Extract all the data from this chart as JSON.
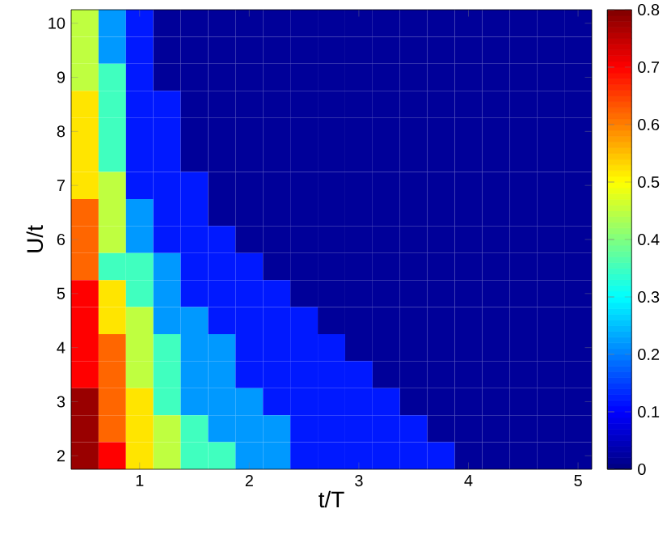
{
  "chart_data": {
    "type": "heatmap",
    "xlabel": "t/T",
    "ylabel": "U/t",
    "clim": [
      0,
      0.8
    ],
    "cticks": [
      0,
      0.1,
      0.2,
      0.3,
      0.4,
      0.5,
      0.6,
      0.7,
      0.8
    ],
    "categories": [
      null,
      null,
      "1",
      null,
      null,
      null,
      "2",
      null,
      null,
      null,
      "3",
      null,
      null,
      null,
      "4",
      null,
      null,
      null,
      "5"
    ],
    "y_categories": [
      "10",
      null,
      "9",
      null,
      "8",
      null,
      "7",
      null,
      "6",
      null,
      "5",
      null,
      "4",
      null,
      "3",
      null,
      "2"
    ],
    "cells": [
      [
        0.45,
        0.22,
        0.12,
        0.02,
        0.02,
        0.02,
        0.02,
        0.02,
        0.02,
        0.02,
        0.02,
        0.02,
        0.02,
        0.02,
        0.02,
        0.02,
        0.02,
        0.02,
        0.02
      ],
      [
        0.45,
        0.22,
        0.12,
        0.02,
        0.02,
        0.02,
        0.02,
        0.02,
        0.02,
        0.02,
        0.02,
        0.02,
        0.02,
        0.02,
        0.02,
        0.02,
        0.02,
        0.02,
        0.02
      ],
      [
        0.45,
        0.35,
        0.12,
        0.02,
        0.02,
        0.02,
        0.02,
        0.02,
        0.02,
        0.02,
        0.02,
        0.02,
        0.02,
        0.02,
        0.02,
        0.02,
        0.02,
        0.02,
        0.02
      ],
      [
        0.52,
        0.35,
        0.12,
        0.12,
        0.02,
        0.02,
        0.02,
        0.02,
        0.02,
        0.02,
        0.02,
        0.02,
        0.02,
        0.02,
        0.02,
        0.02,
        0.02,
        0.02,
        0.02
      ],
      [
        0.52,
        0.35,
        0.12,
        0.12,
        0.02,
        0.02,
        0.02,
        0.02,
        0.02,
        0.02,
        0.02,
        0.02,
        0.02,
        0.02,
        0.02,
        0.02,
        0.02,
        0.02,
        0.02
      ],
      [
        0.52,
        0.35,
        0.12,
        0.12,
        0.02,
        0.02,
        0.02,
        0.02,
        0.02,
        0.02,
        0.02,
        0.02,
        0.02,
        0.02,
        0.02,
        0.02,
        0.02,
        0.02,
        0.02
      ],
      [
        0.52,
        0.45,
        0.12,
        0.12,
        0.12,
        0.02,
        0.02,
        0.02,
        0.02,
        0.02,
        0.02,
        0.02,
        0.02,
        0.02,
        0.02,
        0.02,
        0.02,
        0.02,
        0.02
      ],
      [
        0.62,
        0.45,
        0.22,
        0.12,
        0.12,
        0.02,
        0.02,
        0.02,
        0.02,
        0.02,
        0.02,
        0.02,
        0.02,
        0.02,
        0.02,
        0.02,
        0.02,
        0.02,
        0.02
      ],
      [
        0.62,
        0.45,
        0.22,
        0.12,
        0.12,
        0.12,
        0.02,
        0.02,
        0.02,
        0.02,
        0.02,
        0.02,
        0.02,
        0.02,
        0.02,
        0.02,
        0.02,
        0.02,
        0.02
      ],
      [
        0.62,
        0.35,
        0.35,
        0.22,
        0.12,
        0.12,
        0.12,
        0.02,
        0.02,
        0.02,
        0.02,
        0.02,
        0.02,
        0.02,
        0.02,
        0.02,
        0.02,
        0.02,
        0.02
      ],
      [
        0.7,
        0.52,
        0.35,
        0.22,
        0.12,
        0.12,
        0.12,
        0.12,
        0.02,
        0.02,
        0.02,
        0.02,
        0.02,
        0.02,
        0.02,
        0.02,
        0.02,
        0.02,
        0.02
      ],
      [
        0.7,
        0.52,
        0.45,
        0.22,
        0.22,
        0.12,
        0.12,
        0.12,
        0.12,
        0.02,
        0.02,
        0.02,
        0.02,
        0.02,
        0.02,
        0.02,
        0.02,
        0.02,
        0.02
      ],
      [
        0.7,
        0.62,
        0.45,
        0.35,
        0.22,
        0.22,
        0.12,
        0.12,
        0.12,
        0.12,
        0.02,
        0.02,
        0.02,
        0.02,
        0.02,
        0.02,
        0.02,
        0.02,
        0.02
      ],
      [
        0.7,
        0.62,
        0.45,
        0.35,
        0.22,
        0.22,
        0.12,
        0.12,
        0.12,
        0.12,
        0.12,
        0.02,
        0.02,
        0.02,
        0.02,
        0.02,
        0.02,
        0.02,
        0.02
      ],
      [
        0.78,
        0.62,
        0.52,
        0.35,
        0.22,
        0.22,
        0.22,
        0.12,
        0.12,
        0.12,
        0.12,
        0.12,
        0.02,
        0.02,
        0.02,
        0.02,
        0.02,
        0.02,
        0.02
      ],
      [
        0.78,
        0.62,
        0.52,
        0.45,
        0.35,
        0.22,
        0.22,
        0.22,
        0.12,
        0.12,
        0.12,
        0.12,
        0.12,
        0.02,
        0.02,
        0.02,
        0.02,
        0.02,
        0.02
      ],
      [
        0.78,
        0.7,
        0.52,
        0.45,
        0.35,
        0.35,
        0.22,
        0.22,
        0.12,
        0.12,
        0.12,
        0.12,
        0.12,
        0.12,
        0.02,
        0.02,
        0.02,
        0.02,
        0.02
      ]
    ]
  }
}
